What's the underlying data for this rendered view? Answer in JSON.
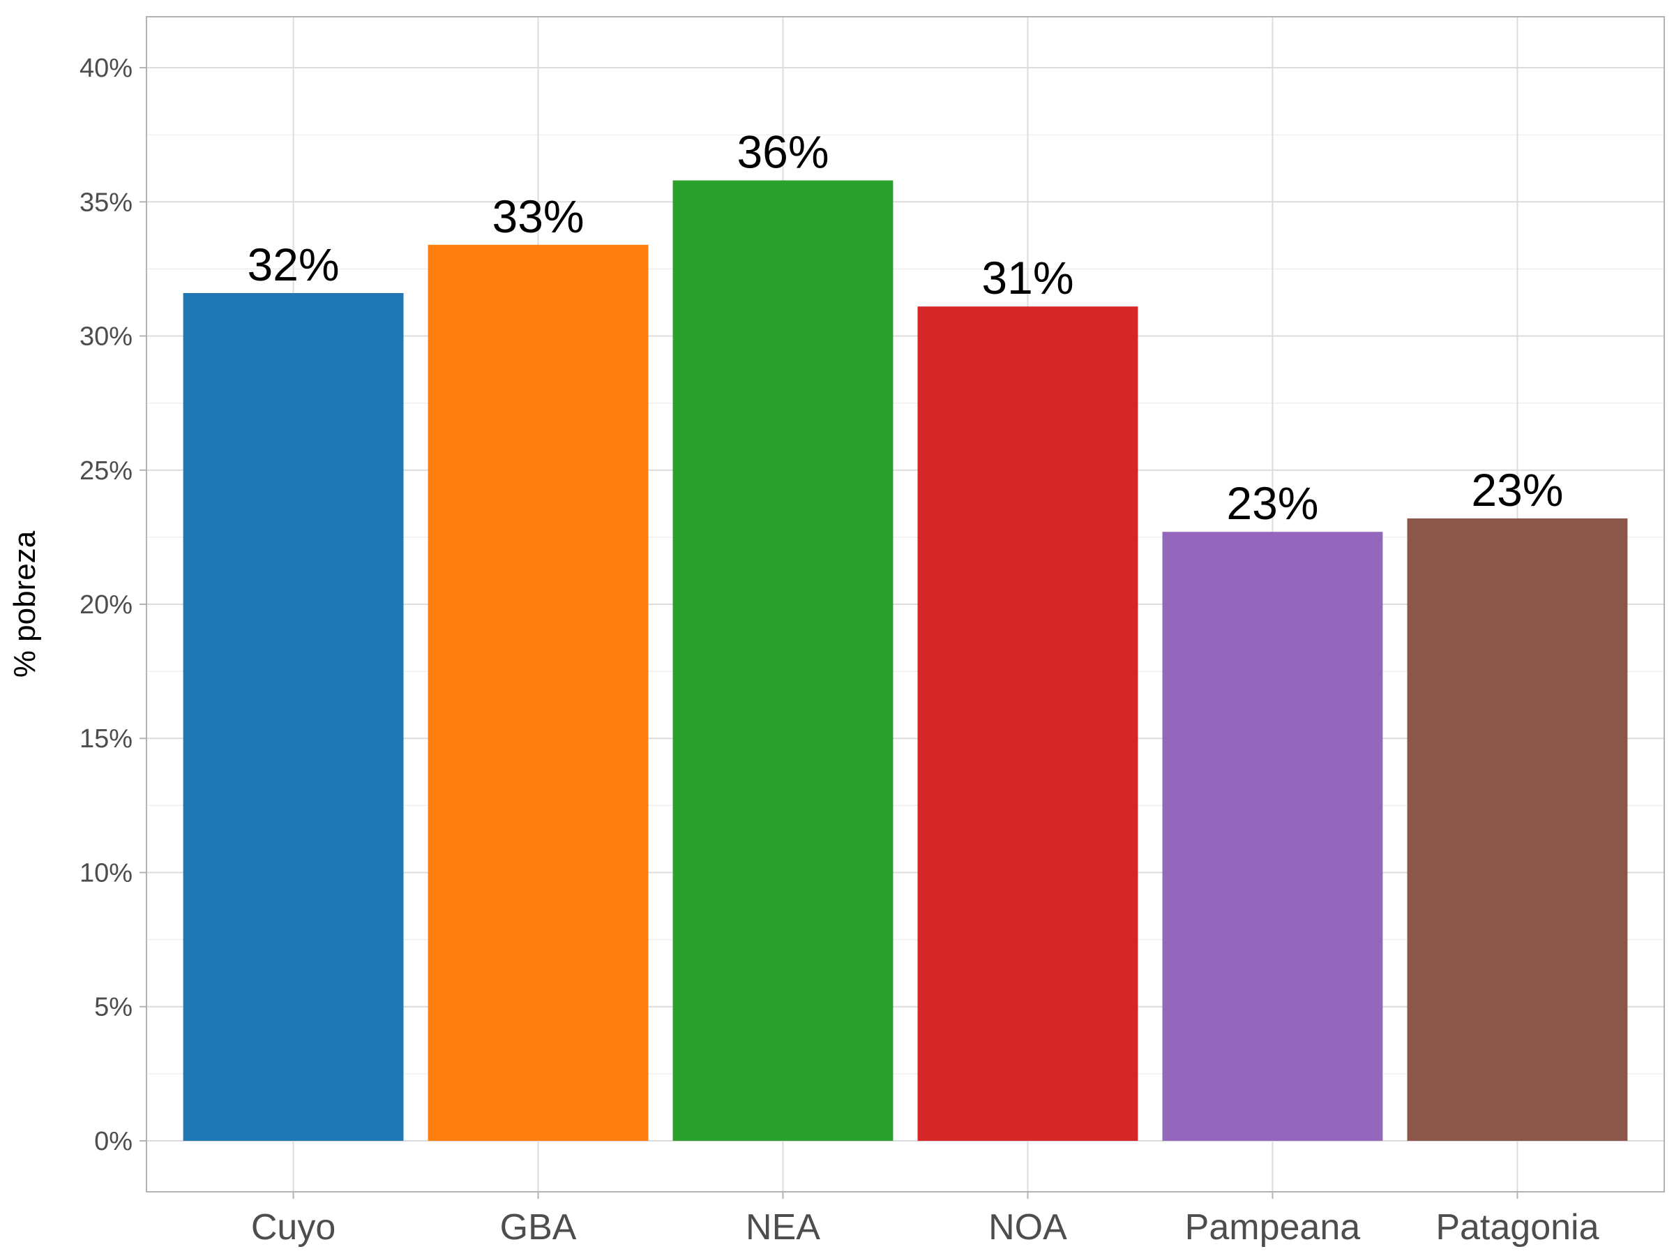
{
  "chart_data": {
    "type": "bar",
    "categories": [
      "Cuyo",
      "GBA",
      "NEA",
      "NOA",
      "Pampeana",
      "Patagonia"
    ],
    "values": [
      31.6,
      33.4,
      35.8,
      31.1,
      22.7,
      23.2
    ],
    "data_labels": [
      "32%",
      "33%",
      "36%",
      "31%",
      "23%",
      "23%"
    ],
    "colors": [
      "#1f77b4",
      "#ff7f0e",
      "#2ca02c",
      "#d62728",
      "#9467bd",
      "#8c564b"
    ],
    "xlabel": "",
    "ylabel": "% pobreza",
    "ylim": [
      -1.9,
      41.9
    ],
    "yticks": [
      0,
      5,
      10,
      15,
      20,
      25,
      30,
      35,
      40
    ],
    "ytick_labels": [
      "0%",
      "5%",
      "10%",
      "15%",
      "20%",
      "25%",
      "30%",
      "35%",
      "40%"
    ],
    "grid": true,
    "legend": "none"
  }
}
